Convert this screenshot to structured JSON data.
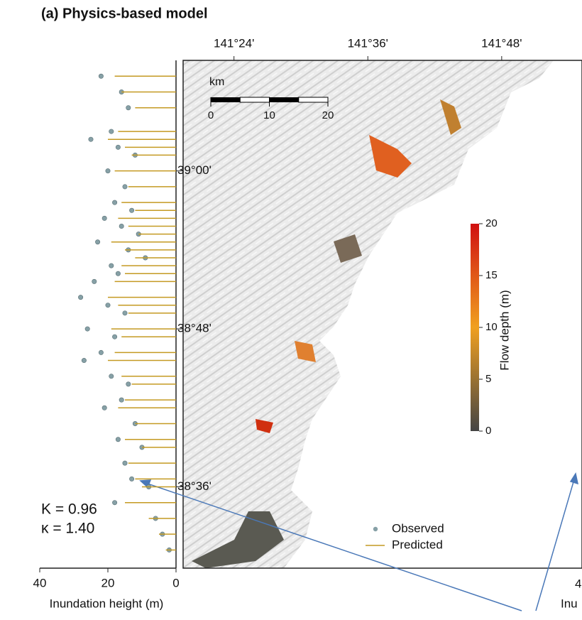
{
  "chart_data": [
    {
      "type": "scatter",
      "title": "(a) Physics-based model",
      "xlabel": "Inundation height (m)",
      "xlim": [
        40,
        0
      ],
      "xticks": [
        40,
        20,
        0
      ],
      "ylim": [
        38.497,
        39.14
      ],
      "yticks": [
        {
          "value": 39.0,
          "label": "39°00'"
        },
        {
          "value": 38.8,
          "label": "38°48'"
        },
        {
          "value": 38.6,
          "label": "38°36'"
        }
      ],
      "series": [
        {
          "name": "Observed",
          "color": "#86a0a6",
          "style": "dot",
          "x": [
            22,
            16,
            14,
            19,
            25,
            17,
            12,
            20,
            15,
            18,
            13,
            21,
            16,
            11,
            23,
            14,
            9,
            19,
            17,
            24,
            28,
            20,
            15,
            26,
            18,
            22,
            27,
            19,
            14,
            16,
            21,
            12,
            17,
            10,
            15,
            13,
            8,
            18,
            6,
            4,
            2
          ],
          "y": [
            39.12,
            39.1,
            39.08,
            39.05,
            39.04,
            39.03,
            39.02,
            39.0,
            38.98,
            38.96,
            38.95,
            38.94,
            38.93,
            38.92,
            38.91,
            38.9,
            38.89,
            38.88,
            38.87,
            38.86,
            38.84,
            38.83,
            38.82,
            38.8,
            38.79,
            38.77,
            38.76,
            38.74,
            38.73,
            38.71,
            38.7,
            38.68,
            38.66,
            38.65,
            38.63,
            38.61,
            38.6,
            38.58,
            38.56,
            38.54,
            38.52
          ]
        },
        {
          "name": "Predicted",
          "color": "#c49a22",
          "style": "hline",
          "x": [
            18,
            16,
            12,
            17,
            20,
            15,
            13,
            18,
            14,
            16,
            12,
            17,
            14,
            11,
            19,
            15,
            12,
            16,
            15,
            18,
            20,
            17,
            14,
            19,
            16,
            18,
            20,
            16,
            13,
            15,
            17,
            12,
            15,
            10,
            14,
            12,
            10,
            15,
            8,
            5,
            3
          ],
          "y": [
            39.12,
            39.1,
            39.08,
            39.05,
            39.04,
            39.03,
            39.02,
            39.0,
            38.98,
            38.96,
            38.95,
            38.94,
            38.93,
            38.92,
            38.91,
            38.9,
            38.89,
            38.88,
            38.87,
            38.86,
            38.84,
            38.83,
            38.82,
            38.8,
            38.79,
            38.77,
            38.76,
            38.74,
            38.73,
            38.71,
            38.7,
            38.68,
            38.66,
            38.65,
            38.63,
            38.61,
            38.6,
            38.58,
            38.56,
            38.54,
            38.52
          ]
        }
      ],
      "stats": [
        "K = 0.96",
        "κ = 1.40"
      ]
    },
    {
      "type": "map",
      "xlim": [
        141.324,
        141.92
      ],
      "xticks": [
        {
          "value": 141.4,
          "label": "141°24'"
        },
        {
          "value": 141.6,
          "label": "141°36'"
        },
        {
          "value": 141.8,
          "label": "141°48'"
        }
      ],
      "scale_label": "km",
      "scale_ticks": [
        0,
        10,
        20
      ],
      "colorbar": {
        "label": "Flow depth (m)",
        "lim": [
          0,
          20
        ],
        "ticks": [
          0,
          5,
          10,
          15,
          20
        ],
        "colors": [
          "#444444",
          "#f0a020",
          "#d01010"
        ]
      },
      "cropped_panel": {
        "tick": "4",
        "label": "Inu"
      }
    }
  ]
}
